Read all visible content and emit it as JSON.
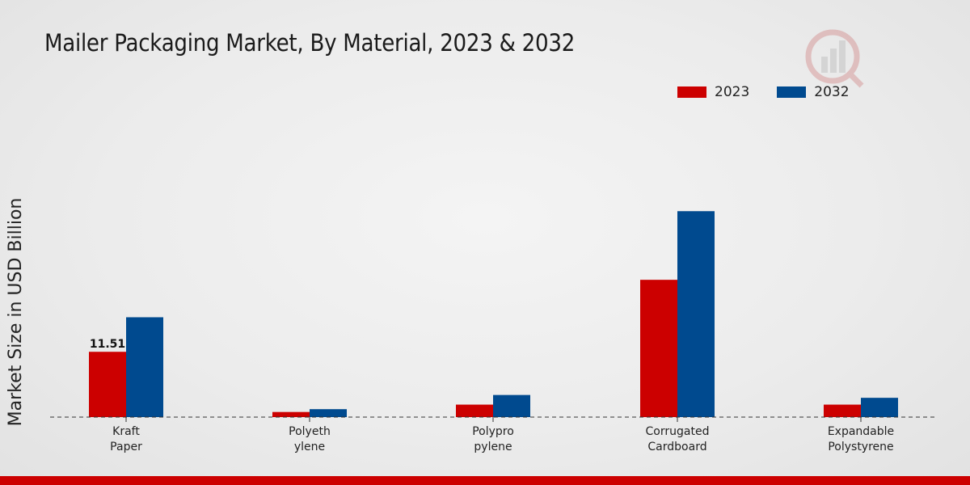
{
  "chart_data": {
    "type": "bar",
    "title": "Mailer Packaging Market, By Material, 2023 & 2032",
    "xlabel": "",
    "ylabel": "Market Size in USD Billion",
    "categories": [
      [
        "Kraft",
        "Paper"
      ],
      [
        "Polyeth",
        "ylene"
      ],
      [
        "Polypro",
        "pylene"
      ],
      [
        "Corrugated",
        "Cardboard"
      ],
      [
        "Expandable",
        "Polystyrene"
      ]
    ],
    "series": [
      {
        "name": "2023",
        "color": "#cc0000",
        "values": [
          11.51,
          0.9,
          2.2,
          24.2,
          2.2
        ]
      },
      {
        "name": "2032",
        "color": "#004a8f",
        "values": [
          17.6,
          1.4,
          3.9,
          36.3,
          3.4
        ]
      }
    ],
    "data_labels": [
      {
        "series": 0,
        "index": 0,
        "text": "11.51"
      }
    ],
    "ylim": [
      0,
      55
    ],
    "grid": false,
    "legend": "top-right"
  },
  "footer": {
    "color": "#cc0000"
  }
}
